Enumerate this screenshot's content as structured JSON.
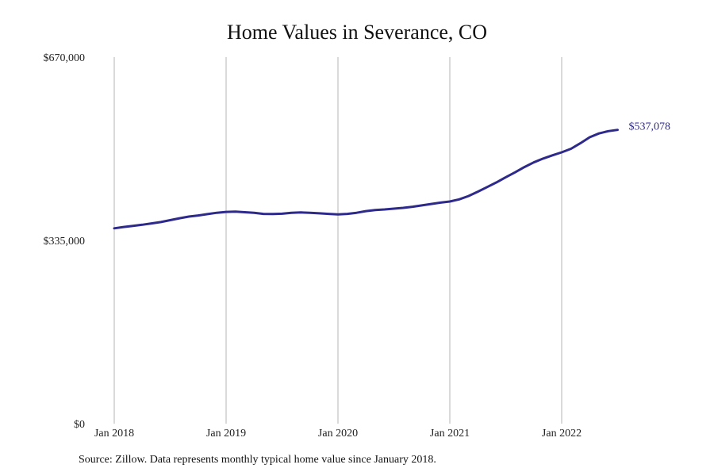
{
  "chart_data": {
    "type": "line",
    "title": "Home Values in Severance, CO",
    "xlabel": "",
    "ylabel": "",
    "ylim": [
      0,
      670000
    ],
    "y_ticks": [
      {
        "value": 0,
        "label": "$0"
      },
      {
        "value": 335000,
        "label": "$335,000"
      },
      {
        "value": 670000,
        "label": "$670,000"
      }
    ],
    "x_ticks": [
      {
        "value": 0,
        "label": "Jan 2018"
      },
      {
        "value": 12,
        "label": "Jan 2019"
      },
      {
        "value": 24,
        "label": "Jan 2020"
      },
      {
        "value": 36,
        "label": "Jan 2021"
      },
      {
        "value": 48,
        "label": "Jan 2022"
      }
    ],
    "grid": "vertical",
    "line_color": "#2e2a8c",
    "series": [
      {
        "x": [
          0,
          1,
          2,
          3,
          4,
          5,
          6,
          7,
          8,
          9,
          10,
          11,
          12,
          13,
          14,
          15,
          16,
          17,
          18,
          19,
          20,
          21,
          22,
          23,
          24,
          25,
          26,
          27,
          28,
          29,
          30,
          31,
          32,
          33,
          34,
          35,
          36,
          37,
          38,
          39,
          40,
          41,
          42,
          43,
          44,
          45,
          46,
          47,
          48,
          49,
          50,
          51,
          52,
          53,
          54
        ],
        "values": [
          357000,
          359500,
          361500,
          363500,
          366000,
          368500,
          372000,
          375500,
          378500,
          380500,
          383000,
          385500,
          387000,
          387500,
          386500,
          385500,
          383500,
          383300,
          383700,
          385500,
          386000,
          385500,
          384500,
          383500,
          382500,
          383500,
          385500,
          388500,
          390500,
          391500,
          393000,
          394500,
          396500,
          399000,
          401500,
          404000,
          406000,
          410000,
          416000,
          424000,
          432500,
          441000,
          450500,
          459500,
          469000,
          477500,
          484500,
          490500,
          496000,
          502500,
          512500,
          523500,
          530500,
          534700,
          537078
        ]
      }
    ],
    "end_label": "$537,078",
    "source": "Source: Zillow. Data represents monthly typical home value since January 2018."
  }
}
